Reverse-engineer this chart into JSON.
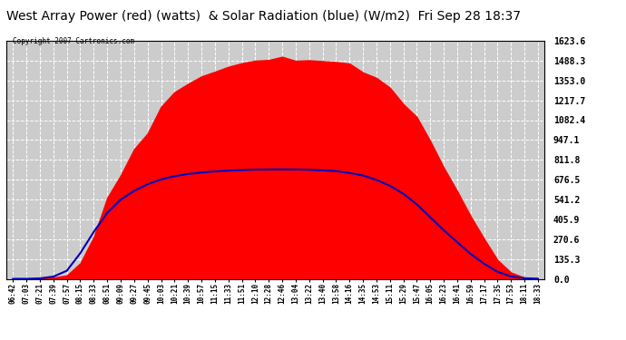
{
  "title": "West Array Power (red) (watts)  & Solar Radiation (blue) (W/m2)  Fri Sep 28 18:37",
  "copyright": "Copyright 2007 Cartronics.com",
  "y_ticks": [
    0.0,
    135.3,
    270.6,
    405.9,
    541.2,
    676.5,
    811.8,
    947.1,
    1082.4,
    1217.7,
    1353.0,
    1488.3,
    1623.6
  ],
  "y_max": 1623.6,
  "y_min": 0.0,
  "bg_color": "#ffffff",
  "plot_bg_color": "#cccccc",
  "grid_color": "#ffffff",
  "fill_color": "#ff0000",
  "line_color": "#0000bb",
  "title_fontsize": 10,
  "x_labels": [
    "06:42",
    "07:03",
    "07:21",
    "07:39",
    "07:57",
    "08:15",
    "08:33",
    "08:51",
    "09:09",
    "09:27",
    "09:45",
    "10:03",
    "10:21",
    "10:39",
    "10:57",
    "11:15",
    "11:33",
    "11:51",
    "12:10",
    "12:28",
    "12:46",
    "13:04",
    "13:22",
    "13:40",
    "13:58",
    "14:16",
    "14:35",
    "14:53",
    "15:11",
    "15:29",
    "15:47",
    "16:05",
    "16:23",
    "16:41",
    "16:59",
    "17:17",
    "17:35",
    "17:53",
    "18:11",
    "18:33"
  ],
  "red_data_y": [
    0,
    0,
    2,
    8,
    30,
    120,
    320,
    530,
    700,
    870,
    1020,
    1150,
    1260,
    1340,
    1390,
    1420,
    1450,
    1470,
    1490,
    1500,
    1510,
    1505,
    1500,
    1490,
    1480,
    1460,
    1420,
    1370,
    1300,
    1210,
    1100,
    950,
    770,
    590,
    420,
    270,
    130,
    45,
    8,
    2
  ],
  "red_noise": [
    0,
    0,
    1,
    3,
    10,
    20,
    40,
    30,
    25,
    35,
    30,
    25,
    20,
    18,
    15,
    12,
    10,
    12,
    15,
    18,
    20,
    25,
    22,
    20,
    18,
    15,
    20,
    25,
    22,
    20,
    18,
    15,
    12,
    10,
    8,
    6,
    5,
    3,
    1,
    0
  ],
  "blue_data_y": [
    0,
    0,
    3,
    15,
    55,
    175,
    320,
    450,
    540,
    600,
    645,
    678,
    700,
    715,
    725,
    733,
    738,
    742,
    745,
    746,
    747,
    746,
    744,
    740,
    735,
    722,
    705,
    675,
    635,
    580,
    508,
    420,
    332,
    250,
    170,
    103,
    48,
    16,
    4,
    1
  ]
}
